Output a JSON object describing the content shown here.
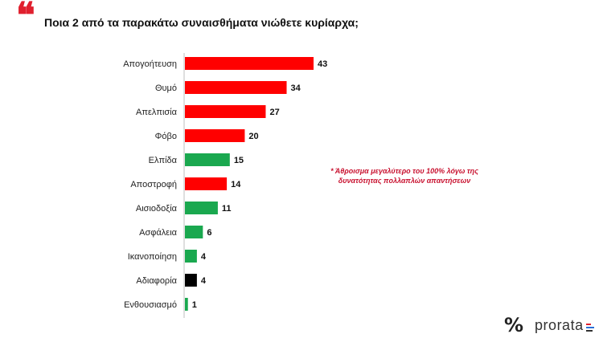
{
  "question": "Ποια 2 από τα παρακάτω συναισθήματα νιώθετε κυρίαρχα;",
  "quote_mark": "❝",
  "note": "* Άθροισμα μεγαλύτερο του 100% λόγω της δυνατότητας πολλαπλών απαντήσεων",
  "logo": {
    "symbol": "%",
    "text": "prorata"
  },
  "colors": {
    "negative": "#ff0000",
    "positive": "#1aa84f",
    "neutral": "#000000",
    "accent": "#e0202e"
  },
  "chart_data": {
    "type": "bar",
    "orientation": "horizontal",
    "title": "Ποια 2 από τα παρακάτω συναισθήματα νιώθετε κυρίαρχα;",
    "categories": [
      "Απογοήτευση",
      "Θυμό",
      "Απελπισία",
      "Φόβο",
      "Ελπίδα",
      "Αποστροφή",
      "Αισιοδοξία",
      "Ασφάλεια",
      "Ικανοποίηση",
      "Αδιαφορία",
      "Ενθουσιασμό"
    ],
    "values": [
      43,
      34,
      27,
      20,
      15,
      14,
      11,
      6,
      4,
      4,
      1
    ],
    "bar_colors": [
      "#ff0000",
      "#ff0000",
      "#ff0000",
      "#ff0000",
      "#1aa84f",
      "#ff0000",
      "#1aa84f",
      "#1aa84f",
      "#1aa84f",
      "#000000",
      "#1aa84f"
    ],
    "xlim": [
      0,
      43
    ],
    "xlabel": "",
    "ylabel": "",
    "grid": false,
    "data_labels": true
  }
}
